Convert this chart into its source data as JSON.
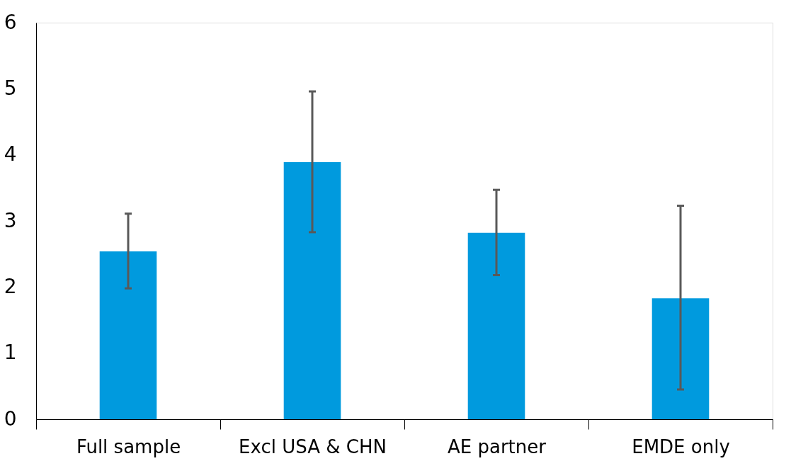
{
  "chart_data": {
    "type": "bar",
    "categories": [
      "Full sample",
      "Excl USA & CHN",
      "AE partner",
      "EMDE only"
    ],
    "values": [
      2.54,
      3.89,
      2.82,
      1.83
    ],
    "errors": [
      [
        1.98,
        3.11
      ],
      [
        2.83,
        4.96
      ],
      [
        2.18,
        3.47
      ],
      [
        0.45,
        3.23
      ]
    ],
    "color": "#009ade",
    "ylim": [
      0,
      6
    ],
    "yticks": [
      0,
      1,
      2,
      3,
      4,
      5,
      6
    ],
    "grid": false
  }
}
